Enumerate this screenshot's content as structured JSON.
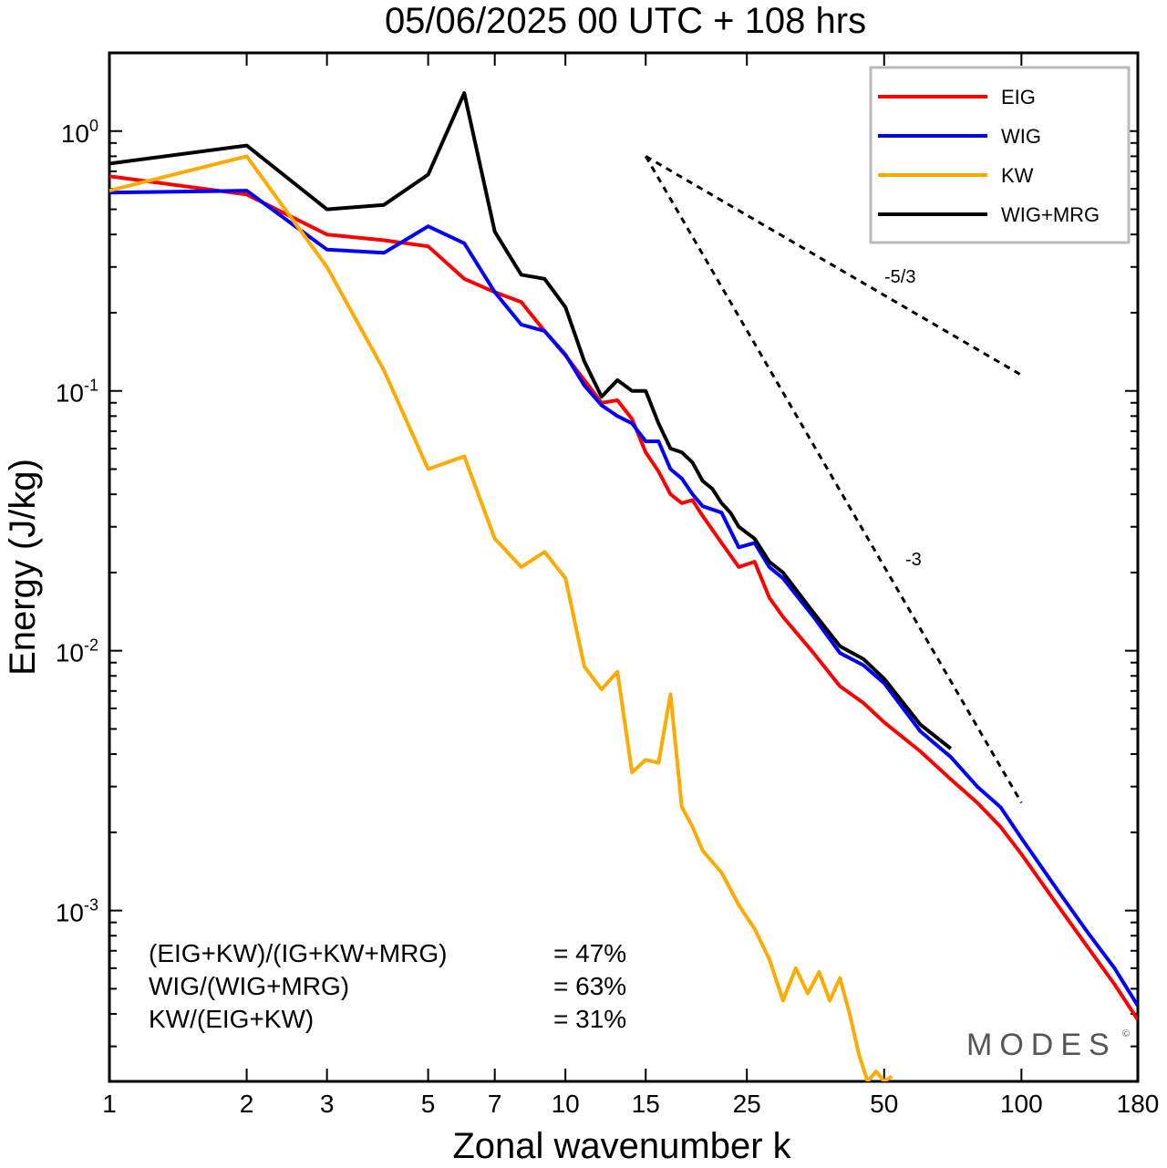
{
  "chart_data": {
    "type": "line",
    "title": "05/06/2025  00 UTC  + 108 hrs",
    "xlabel": "Zonal wavenumber k",
    "ylabel": "Energy (J/kg)",
    "x_scale": "log",
    "y_scale": "log",
    "xlim": [
      1,
      180
    ],
    "ylim": [
      0.00022,
      2.0
    ],
    "x_ticks": [
      1,
      2,
      3,
      5,
      7,
      10,
      15,
      25,
      50,
      100,
      180
    ],
    "x_tick_labels": [
      "1",
      "2",
      "3",
      "5",
      "7",
      "10",
      "15",
      "25",
      "50",
      "100",
      "180"
    ],
    "y_ticks": [
      1,
      0.1,
      0.01,
      0.001
    ],
    "y_tick_labels": [
      {
        "base": "10",
        "exp": "0"
      },
      {
        "base": "10",
        "exp": "-1"
      },
      {
        "base": "10",
        "exp": "-2"
      },
      {
        "base": "10",
        "exp": "-3"
      }
    ],
    "grid": false,
    "legend_position": "top-right",
    "series": [
      {
        "name": "EIG",
        "color": "#ff0000",
        "x": [
          1,
          2,
          3,
          4,
          5,
          6,
          7,
          8,
          9,
          10,
          11,
          12,
          13,
          14,
          15,
          16,
          17,
          18,
          19,
          20,
          22,
          24,
          26,
          28,
          30,
          35,
          40,
          45,
          50,
          60,
          70,
          80,
          90,
          100,
          120,
          140,
          160,
          180
        ],
        "y": [
          0.67,
          0.57,
          0.4,
          0.38,
          0.36,
          0.27,
          0.24,
          0.22,
          0.17,
          0.137,
          0.11,
          0.09,
          0.092,
          0.078,
          0.058,
          0.049,
          0.04,
          0.037,
          0.038,
          0.033,
          0.026,
          0.021,
          0.022,
          0.016,
          0.0135,
          0.0098,
          0.0073,
          0.0063,
          0.0053,
          0.0041,
          0.0032,
          0.0026,
          0.0021,
          0.00165,
          0.00105,
          0.00072,
          0.00052,
          0.00038
        ]
      },
      {
        "name": "WIG",
        "color": "#0000ff",
        "x": [
          1,
          2,
          3,
          4,
          5,
          6,
          7,
          8,
          9,
          10,
          11,
          12,
          13,
          14,
          15,
          16,
          17,
          18,
          19,
          20,
          22,
          24,
          26,
          28,
          30,
          35,
          40,
          45,
          50,
          60,
          70,
          80,
          90,
          100,
          120,
          140,
          160,
          180
        ],
        "y": [
          0.58,
          0.59,
          0.35,
          0.34,
          0.43,
          0.37,
          0.24,
          0.18,
          0.17,
          0.138,
          0.105,
          0.088,
          0.08,
          0.075,
          0.064,
          0.064,
          0.05,
          0.046,
          0.04,
          0.036,
          0.034,
          0.025,
          0.026,
          0.021,
          0.019,
          0.0135,
          0.0098,
          0.0088,
          0.0075,
          0.0049,
          0.0039,
          0.003,
          0.0025,
          0.0019,
          0.0012,
          0.00082,
          0.0006,
          0.00043
        ]
      },
      {
        "name": "KW",
        "color": "#ffaa00",
        "x": [
          1,
          2,
          3,
          4,
          5,
          6,
          7,
          8,
          9,
          10,
          11,
          12,
          13,
          14,
          15,
          16,
          17,
          18,
          19,
          20,
          22,
          24,
          26,
          28,
          30,
          32,
          34,
          36,
          38,
          40,
          42,
          44,
          46,
          48,
          50,
          52
        ],
        "y": [
          0.59,
          0.8,
          0.3,
          0.12,
          0.05,
          0.056,
          0.027,
          0.021,
          0.024,
          0.019,
          0.0087,
          0.0071,
          0.0083,
          0.0034,
          0.0038,
          0.0037,
          0.0068,
          0.0025,
          0.0021,
          0.0017,
          0.0014,
          0.00105,
          0.00085,
          0.00065,
          0.00045,
          0.0006,
          0.00048,
          0.00058,
          0.00045,
          0.00055,
          0.0004,
          0.00028,
          0.00022,
          0.00024,
          0.00022,
          0.00023
        ]
      },
      {
        "name": "WIG+MRG",
        "color": "#000000",
        "x": [
          1,
          2,
          3,
          4,
          5,
          6,
          7,
          8,
          9,
          10,
          11,
          12,
          13,
          14,
          15,
          16,
          17,
          18,
          19,
          20,
          21,
          22,
          23,
          24,
          26,
          28,
          30,
          35,
          40,
          45,
          50,
          60,
          70
        ],
        "y": [
          0.75,
          0.88,
          0.5,
          0.52,
          0.68,
          1.4,
          0.41,
          0.28,
          0.27,
          0.21,
          0.13,
          0.095,
          0.11,
          0.1,
          0.1,
          0.075,
          0.06,
          0.058,
          0.053,
          0.045,
          0.042,
          0.037,
          0.034,
          0.03,
          0.027,
          0.022,
          0.02,
          0.014,
          0.0104,
          0.0093,
          0.0078,
          0.0052,
          0.0042
        ]
      }
    ],
    "reference_slopes": [
      {
        "label": "-5/3",
        "x": [
          15,
          100
        ],
        "y": [
          0.8,
          0.115
        ]
      },
      {
        "label": "-3",
        "x": [
          15,
          100
        ],
        "y": [
          0.8,
          0.0026
        ]
      }
    ],
    "annotations": [
      {
        "label": "(EIG+KW)/(IG+KW+MRG)",
        "value": "= 47%"
      },
      {
        "label": "WIG/(WIG+MRG)",
        "value": "= 63%"
      },
      {
        "label": "KW/(EIG+KW)",
        "value": "= 31%"
      }
    ],
    "watermark": "MODES",
    "watermark_mark": "©"
  }
}
